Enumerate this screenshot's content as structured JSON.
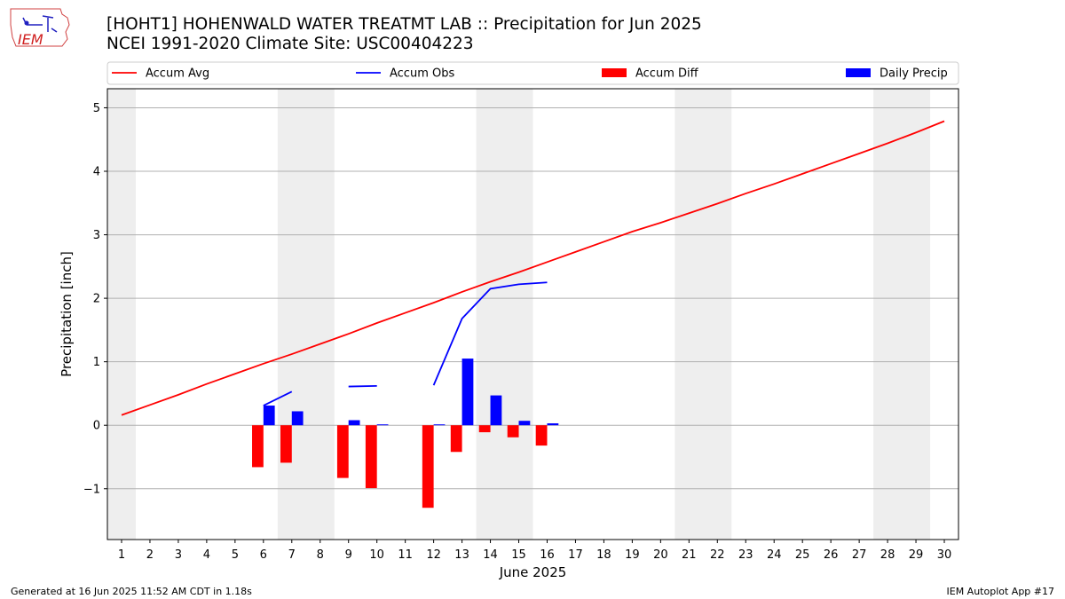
{
  "logo": {
    "text": "IEM"
  },
  "header": {
    "title_line1": "[HOHT1] HOHENWALD WATER TREATMT LAB :: Precipitation for Jun 2025",
    "title_line2": "NCEI 1991-2020 Climate Site: USC00404223"
  },
  "footer": {
    "generated": "Generated at 16 Jun 2025 11:52 AM CDT in 1.18s",
    "app": "IEM Autoplot App #17"
  },
  "colors": {
    "accum_avg": "#ff0000",
    "accum_obs": "#0000ff",
    "accum_diff": "#ff0000",
    "daily_precip": "#0000ff",
    "weekend_shade": "#eeeeee",
    "grid": "#b0b0b0"
  },
  "chart_data": {
    "type": "bar",
    "xlabel": "June 2025",
    "ylabel": "Precipitation [inch]",
    "xlim": [
      0.5,
      30.5
    ],
    "ylim": [
      -1.8,
      5.3
    ],
    "yticks": [
      -1,
      0,
      1,
      2,
      3,
      4,
      5
    ],
    "ytick_labels": [
      "−1",
      "0",
      "1",
      "2",
      "3",
      "4",
      "5"
    ],
    "days": [
      1,
      2,
      3,
      4,
      5,
      6,
      7,
      8,
      9,
      10,
      11,
      12,
      13,
      14,
      15,
      16,
      17,
      18,
      19,
      20,
      21,
      22,
      23,
      24,
      25,
      26,
      27,
      28,
      29,
      30
    ],
    "weekend_spans": [
      [
        0.5,
        1.5
      ],
      [
        6.5,
        8.5
      ],
      [
        13.5,
        15.5
      ],
      [
        20.5,
        22.5
      ],
      [
        27.5,
        29.5
      ]
    ],
    "grid": "horizontal",
    "legend": {
      "placement": "top",
      "entries": [
        {
          "label": "Accum Avg",
          "kind": "line",
          "color": "#ff0000"
        },
        {
          "label": "Accum Obs",
          "kind": "line",
          "color": "#0000ff"
        },
        {
          "label": "Accum Diff",
          "kind": "bar",
          "color": "#ff0000"
        },
        {
          "label": "Daily Precip",
          "kind": "bar",
          "color": "#0000ff"
        }
      ]
    },
    "series": [
      {
        "name": "Accum Avg",
        "kind": "line",
        "x": [
          1,
          2,
          3,
          4,
          5,
          6,
          7,
          8,
          9,
          10,
          11,
          12,
          13,
          14,
          15,
          16,
          17,
          18,
          19,
          20,
          21,
          22,
          23,
          24,
          25,
          26,
          27,
          28,
          29,
          30
        ],
        "values": [
          0.16,
          0.32,
          0.48,
          0.65,
          0.81,
          0.97,
          1.12,
          1.28,
          1.44,
          1.61,
          1.77,
          1.93,
          2.1,
          2.26,
          2.41,
          2.57,
          2.73,
          2.89,
          3.05,
          3.19,
          3.34,
          3.49,
          3.65,
          3.8,
          3.96,
          4.12,
          4.28,
          4.44,
          4.61,
          4.79
        ]
      },
      {
        "name": "Accum Obs",
        "kind": "line",
        "segments": [
          {
            "x": [
              6,
              7
            ],
            "values": [
              0.31,
              0.53
            ]
          },
          {
            "x": [
              9,
              10
            ],
            "values": [
              0.61,
              0.62
            ]
          },
          {
            "x": [
              12,
              13,
              14,
              15,
              16
            ],
            "values": [
              0.63,
              1.68,
              2.15,
              2.22,
              2.25
            ]
          }
        ]
      },
      {
        "name": "Accum Diff",
        "kind": "bar",
        "x": [
          6,
          7,
          9,
          10,
          12,
          13,
          14,
          15,
          16
        ],
        "values": [
          -0.66,
          -0.59,
          -0.83,
          -0.99,
          -1.3,
          -0.42,
          -0.11,
          -0.19,
          -0.32
        ]
      },
      {
        "name": "Daily Precip",
        "kind": "bar",
        "x": [
          6,
          7,
          9,
          10,
          12,
          13,
          14,
          15,
          16
        ],
        "values": [
          0.31,
          0.22,
          0.08,
          0.01,
          0.01,
          1.05,
          0.47,
          0.07,
          0.03
        ]
      }
    ]
  }
}
